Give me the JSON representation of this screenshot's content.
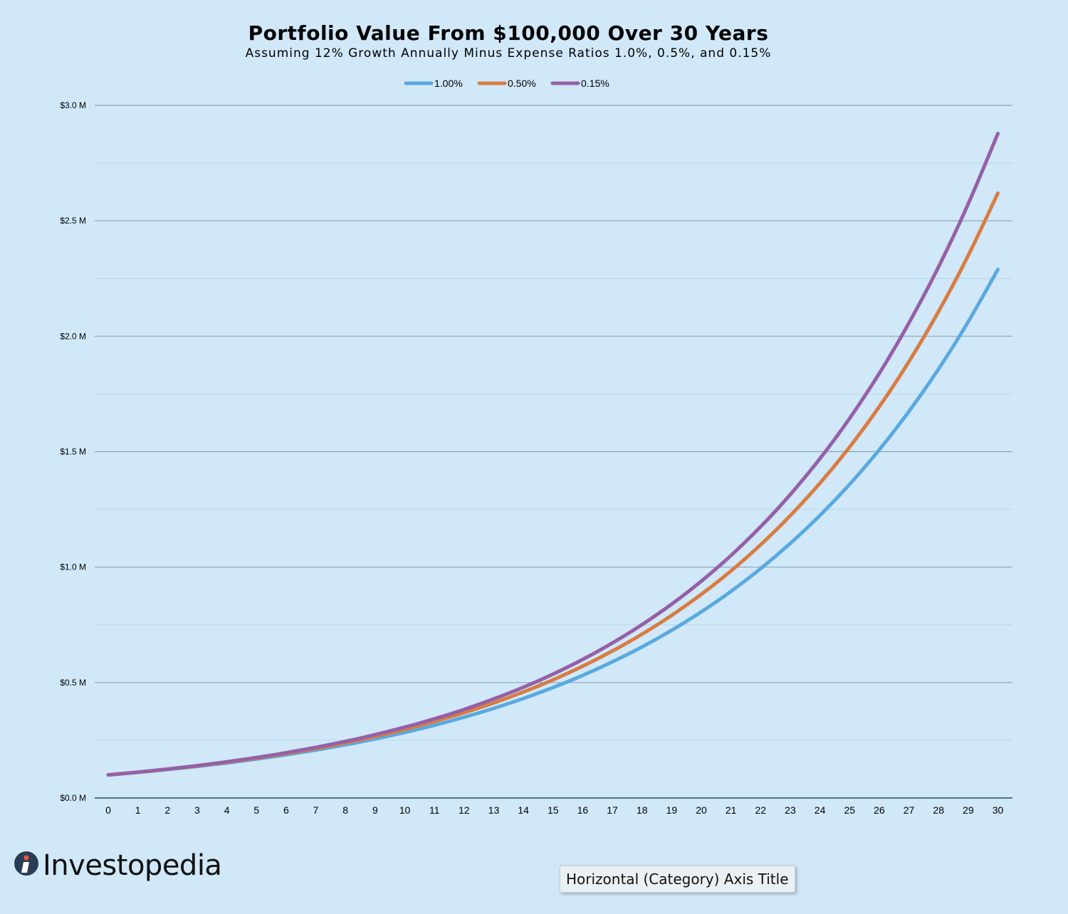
{
  "colors": {
    "background": "#d0e8f8",
    "series_1": "#5aa9e0",
    "series_2": "#d87c42",
    "series_3": "#9560a8"
  },
  "brand": {
    "name": "Investopedia"
  },
  "axis_title_box": {
    "text": "Horizontal (Category) Axis Title"
  },
  "chart_data": {
    "type": "line",
    "title": "Portfolio Value From $100,000 Over 30 Years",
    "subtitle": "Assuming 12% Growth Annually Minus Expense Ratios 1.0%, 0.5%, and 0.15%",
    "xlabel": "",
    "ylabel": "",
    "legend_position": "top-center",
    "grid": true,
    "ylim": [
      0,
      3000000
    ],
    "y_ticks": [
      {
        "value": 0,
        "label": "$0.0 M"
      },
      {
        "value": 500000,
        "label": "$0.5 M"
      },
      {
        "value": 1000000,
        "label": "$1.0 M"
      },
      {
        "value": 1500000,
        "label": "$1.5 M"
      },
      {
        "value": 2000000,
        "label": "$2.0 M"
      },
      {
        "value": 2500000,
        "label": "$2.5 M"
      },
      {
        "value": 3000000,
        "label": "$3.0 M"
      }
    ],
    "categories": [
      "0",
      "1",
      "2",
      "3",
      "4",
      "5",
      "6",
      "7",
      "8",
      "9",
      "10",
      "11",
      "12",
      "13",
      "14",
      "15",
      "16",
      "17",
      "18",
      "19",
      "20",
      "21",
      "22",
      "23",
      "24",
      "25",
      "26",
      "27",
      "28",
      "29",
      "30"
    ],
    "series": [
      {
        "name": "1.00%",
        "color": "#5aa9e0",
        "values": [
          100000,
          111000,
          123210,
          136763,
          151807,
          168506,
          187041,
          207616,
          230454,
          255804,
          283942,
          315176,
          349845,
          388328,
          431044,
          478459,
          531089,
          589509,
          654355,
          726334,
          806231,
          894917,
          993357,
          1102626,
          1223915,
          1358546,
          1507986,
          1673865,
          1857990,
          2062369,
          2289230
        ]
      },
      {
        "name": "0.50%",
        "color": "#d87c42",
        "values": [
          100000,
          111500,
          124323,
          138620,
          154561,
          172335,
          192154,
          214252,
          238891,
          266363,
          296995,
          331149,
          369231,
          411693,
          459038,
          511827,
          570687,
          636316,
          709492,
          791084,
          882058,
          983495,
          1096597,
          1222705,
          1363316,
          1520098,
          1694909,
          1889823,
          2107153,
          2349476,
          2619666
        ]
      },
      {
        "name": "0.15%",
        "color": "#9560a8",
        "values": [
          100000,
          111850,
          125104,
          139929,
          156511,
          175058,
          195802,
          219005,
          244957,
          273985,
          306453,
          342767,
          383385,
          428817,
          479631,
          536467,
          600038,
          671143,
          750674,
          839629,
          939125,
          1050411,
          1174885,
          1314109,
          1469831,
          1644006,
          1838821,
          2056722,
          2300443,
          2573045,
          2877951
        ]
      }
    ]
  }
}
